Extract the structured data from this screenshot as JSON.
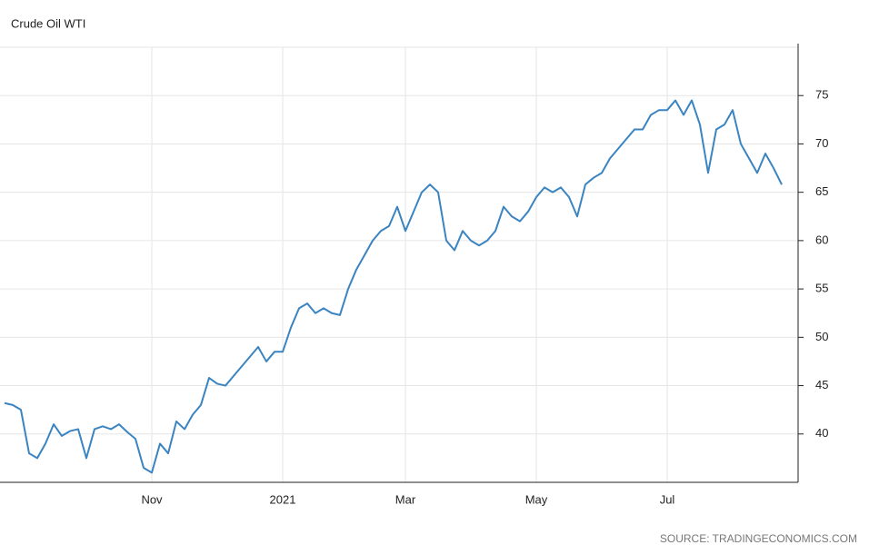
{
  "chart_data": {
    "type": "line",
    "title": "Crude Oil WTI",
    "source": "SOURCE: TRADINGECONOMICS.COM",
    "color": "#3a84c1",
    "grid": true,
    "categories": [
      null,
      null,
      null,
      null,
      null,
      null,
      null,
      null,
      null,
      null,
      null,
      null,
      null,
      null,
      null,
      null,
      null,
      null,
      "Nov",
      null,
      null,
      null,
      null,
      null,
      null,
      null,
      null,
      null,
      null,
      null,
      null,
      null,
      null,
      null,
      "2021",
      null,
      null,
      null,
      null,
      null,
      null,
      null,
      null,
      null,
      null,
      null,
      null,
      null,
      null,
      "Mar",
      null,
      null,
      null,
      null,
      null,
      null,
      null,
      null,
      null,
      null,
      null,
      null,
      null,
      null,
      null,
      "May",
      null,
      null,
      null,
      null,
      null,
      null,
      null,
      null,
      null,
      null,
      null,
      null,
      null,
      null,
      null,
      "Jul",
      null,
      null,
      null,
      null,
      null,
      null,
      null,
      null,
      null,
      null,
      null,
      null,
      null,
      null
    ],
    "values": [
      43.2,
      43,
      42.5,
      38,
      37.5,
      39,
      41,
      39.8,
      40.3,
      40.5,
      37.5,
      40.5,
      40.8,
      40.5,
      41,
      40.2,
      39.5,
      36.5,
      36,
      39,
      38,
      41.3,
      40.5,
      42,
      43,
      45.8,
      45.2,
      45,
      46,
      47,
      48,
      49,
      47.5,
      48.5,
      48.5,
      51,
      53,
      53.5,
      52.5,
      53,
      52.5,
      52.3,
      55,
      57,
      58.5,
      60,
      61,
      61.5,
      63.5,
      61,
      63,
      65,
      65.8,
      65,
      60,
      59,
      61,
      60,
      59.5,
      60,
      61,
      63.5,
      62.5,
      62,
      63,
      64.5,
      65.5,
      65,
      65.5,
      64.5,
      62.5,
      65.8,
      66.5,
      67,
      68.5,
      69.5,
      70.5,
      71.5,
      71.5,
      73,
      73.5,
      73.5,
      74.5,
      73,
      74.5,
      72,
      67,
      71.5,
      72,
      73.5,
      70,
      68.5,
      67,
      69,
      67.5,
      65.8
    ],
    "ylim": [
      35,
      80
    ],
    "yticks": [
      40,
      45,
      50,
      55,
      60,
      65,
      70,
      75
    ]
  }
}
